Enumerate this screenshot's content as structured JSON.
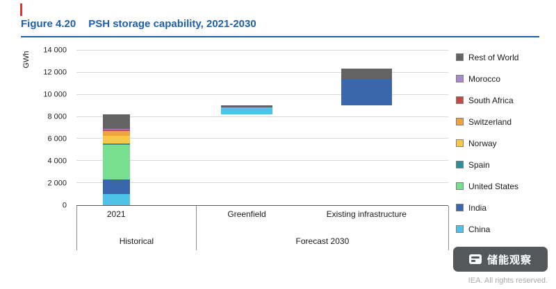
{
  "header": {
    "figure_label": "Figure 4.20",
    "title": "PSH storage capability, 2021-2030",
    "accent_color": "#1d5fae"
  },
  "footer": {
    "credit": "IEA. All rights reserved.",
    "watermark": "储能观察"
  },
  "chart_data": {
    "type": "bar",
    "subtype": "stacked-waterfall",
    "title": "PSH storage capability, 2021-2030",
    "ylabel": "GWh",
    "ylim": [
      0,
      14000
    ],
    "grid": true,
    "legend_position": "right",
    "yticks": [
      {
        "value": 0,
        "label": "0"
      },
      {
        "value": 2000,
        "label": "2 000"
      },
      {
        "value": 4000,
        "label": "4 000"
      },
      {
        "value": 6000,
        "label": "6 000"
      },
      {
        "value": 8000,
        "label": "8 000"
      },
      {
        "value": 10000,
        "label": "10 000"
      },
      {
        "value": 12000,
        "label": "12 000"
      },
      {
        "value": 14000,
        "label": "14 000"
      }
    ],
    "legend": [
      {
        "name": "Rest of World",
        "color": "#636363"
      },
      {
        "name": "Morocco",
        "color": "#a98bc9"
      },
      {
        "name": "South Africa",
        "color": "#bf4a47"
      },
      {
        "name": "Switzerland",
        "color": "#f0a23c"
      },
      {
        "name": "Norway",
        "color": "#f9c846"
      },
      {
        "name": "Spain",
        "color": "#2e8f94"
      },
      {
        "name": "United States",
        "color": "#79df90"
      },
      {
        "name": "India",
        "color": "#3a66ae"
      },
      {
        "name": "China",
        "color": "#4fc3e7"
      }
    ],
    "groups": [
      {
        "label": "Historical",
        "start_pct": 0,
        "end_pct": 32.3
      },
      {
        "label": "Forecast 2030",
        "start_pct": 32.3,
        "end_pct": 100
      }
    ],
    "bars": [
      {
        "label": "2021",
        "center_pct": 10.7,
        "width_pct": 7.2,
        "base": 0,
        "segments": [
          {
            "name": "China",
            "value": 1000
          },
          {
            "name": "India",
            "value": 1300
          },
          {
            "name": "United States",
            "value": 3150
          },
          {
            "name": "Spain",
            "value": 150
          },
          {
            "name": "Norway",
            "value": 700
          },
          {
            "name": "Switzerland",
            "value": 400
          },
          {
            "name": "South Africa",
            "value": 150
          },
          {
            "name": "Morocco",
            "value": 50
          },
          {
            "name": "Rest of World",
            "value": 1300
          }
        ]
      },
      {
        "label": "Greenfield",
        "center_pct": 45.8,
        "width_pct": 14.0,
        "base": 8200,
        "segments": [
          {
            "name": "China",
            "value": 650
          },
          {
            "name": "Rest of World",
            "value": 200
          }
        ]
      },
      {
        "label": "Existing infrastructure",
        "center_pct": 78.0,
        "width_pct": 13.6,
        "base": 9050,
        "segments": [
          {
            "name": "India",
            "value": 2350
          },
          {
            "name": "Rest of World",
            "value": 1000
          }
        ]
      }
    ]
  }
}
